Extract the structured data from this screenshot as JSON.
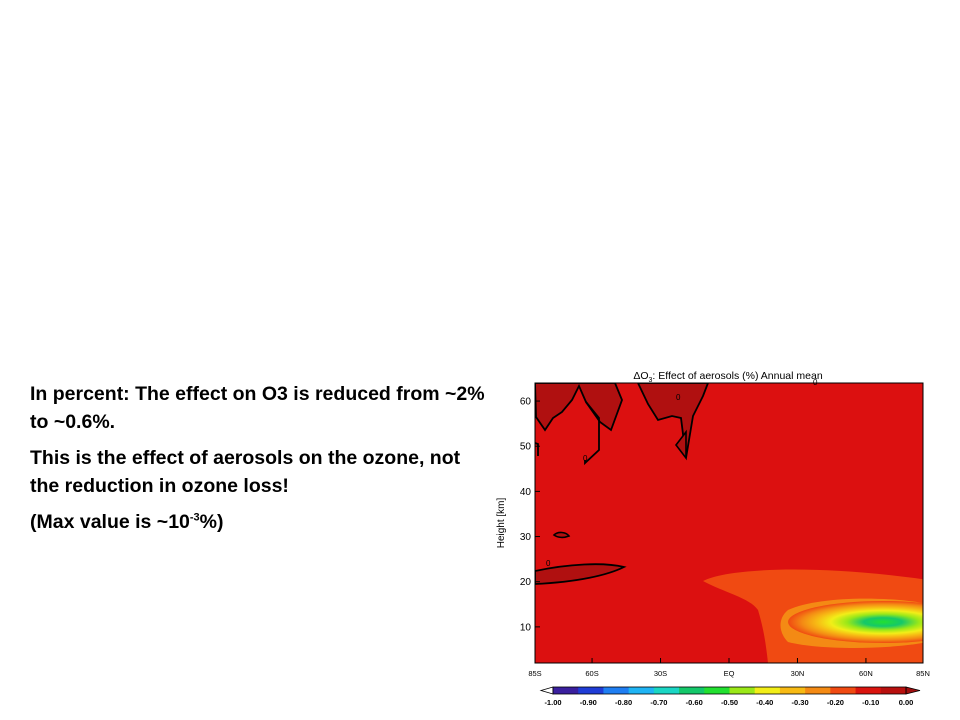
{
  "slide": {
    "paragraph_1": "In percent: The effect on O3 is reduced from ~2% to ~0.6%.",
    "paragraph_2": "This is the effect of aerosols on the ozone, not the reduction in ozone loss!",
    "paragraph_3_prefix": "(Max value is ~10",
    "paragraph_3_exponent": "-3",
    "paragraph_3_suffix": "%)"
  },
  "chart_data": {
    "type": "heatmap",
    "title_prefix": "ΔO",
    "title_subscript": "3",
    "title_suffix": ": Effect of aerosols (%) Annual mean",
    "ylabel": "Height [km]",
    "xlabel": "",
    "x_ticks": [
      "85S",
      "60S",
      "30S",
      "EQ",
      "30N",
      "60N",
      "85N"
    ],
    "x_tick_values": [
      -85,
      -60,
      -30,
      0,
      30,
      60,
      85
    ],
    "xlim": [
      -85,
      85
    ],
    "y_ticks": [
      10,
      20,
      30,
      40,
      50,
      60
    ],
    "ylim": [
      2,
      64
    ],
    "contour_labels": [
      "0",
      "0",
      "0",
      "0"
    ],
    "colorbar": {
      "tick_labels": [
        "-1.00",
        "-0.90",
        "-0.80",
        "-0.70",
        "-0.60",
        "-0.50",
        "-0.40",
        "-0.30",
        "-0.20",
        "-0.10",
        "0.00"
      ],
      "colors": [
        "#3a1f9e",
        "#1f3cd6",
        "#1f7ef2",
        "#1fb4f4",
        "#1ad6c4",
        "#14c86a",
        "#22e030",
        "#9be818",
        "#f2ee18",
        "#f7ba14",
        "#f48a14",
        "#f04a12",
        "#da140e",
        "#b8100e"
      ],
      "under_color": "#ffffff",
      "over_color": "#9e0e0e"
    },
    "background_color": "#dc1010",
    "positive_region_color": "#b01010",
    "contour_color": "#000000",
    "grid": false
  }
}
